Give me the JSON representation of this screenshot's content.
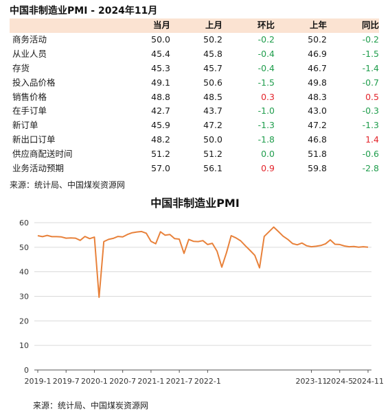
{
  "table_title": "中国非制造业PMI - 2024年11月",
  "table": {
    "headers": [
      "",
      "当月",
      "上月",
      "环比",
      "上年",
      "同比"
    ],
    "rows": [
      {
        "name": "商务活动",
        "cur": "50.0",
        "prev": "50.2",
        "mom": "-0.2",
        "lastyear": "50.2",
        "yoy": "-0.2"
      },
      {
        "name": "从业人员",
        "cur": "45.4",
        "prev": "45.8",
        "mom": "-0.4",
        "lastyear": "46.9",
        "yoy": "-1.5"
      },
      {
        "name": "存货",
        "cur": "45.3",
        "prev": "45.7",
        "mom": "-0.4",
        "lastyear": "46.7",
        "yoy": "-1.4"
      },
      {
        "name": "投入品价格",
        "cur": "49.1",
        "prev": "50.6",
        "mom": "-1.5",
        "lastyear": "49.8",
        "yoy": "-0.7"
      },
      {
        "name": "销售价格",
        "cur": "48.8",
        "prev": "48.5",
        "mom": "0.3",
        "lastyear": "48.3",
        "yoy": "0.5"
      },
      {
        "name": "在手订单",
        "cur": "42.7",
        "prev": "43.7",
        "mom": "-1.0",
        "lastyear": "43.0",
        "yoy": "-0.3"
      },
      {
        "name": "新订单",
        "cur": "45.9",
        "prev": "47.2",
        "mom": "-1.3",
        "lastyear": "47.2",
        "yoy": "-1.3"
      },
      {
        "name": "新出口订单",
        "cur": "48.2",
        "prev": "50.0",
        "mom": "-1.8",
        "lastyear": "46.8",
        "yoy": "1.4"
      },
      {
        "name": "供应商配送时间",
        "cur": "51.2",
        "prev": "51.2",
        "mom": "0.0",
        "lastyear": "51.8",
        "yoy": "-0.6"
      },
      {
        "name": "业务活动预期",
        "cur": "57.0",
        "prev": "56.1",
        "mom": "0.9",
        "lastyear": "59.8",
        "yoy": "-2.8"
      }
    ]
  },
  "source_top": "来源：统计局、中国煤炭资源网",
  "source_bottom": "来源：统计局、中国煤炭资源网",
  "colors": {
    "line": "#e8813a",
    "header_bg": "#fbe3d2",
    "positive": "#e3242b",
    "negative": "#1f9d4c",
    "grid": "#d9d9d9"
  },
  "chart_data": {
    "type": "line",
    "title": "中国非制造业PMI",
    "xlabel": "",
    "ylabel": "",
    "ylim": [
      0,
      60
    ],
    "yticks": [
      0,
      10,
      20,
      30,
      40,
      50,
      60
    ],
    "xtick_labels": [
      "2019-1",
      "2019-7",
      "2020-1",
      "2020-7",
      "2021-1",
      "2021-7",
      "2022-1",
      "2023-11",
      "2024-5",
      "2024-11"
    ],
    "grid": true,
    "legend": "none",
    "series": [
      {
        "name": "",
        "x": [
          "2019-1",
          "2019-2",
          "2019-3",
          "2019-4",
          "2019-5",
          "2019-6",
          "2019-7",
          "2019-8",
          "2019-9",
          "2019-10",
          "2019-11",
          "2019-12",
          "2020-1",
          "2020-2",
          "2020-3",
          "2020-4",
          "2020-5",
          "2020-6",
          "2020-7",
          "2020-8",
          "2020-9",
          "2020-10",
          "2020-11",
          "2020-12",
          "2021-1",
          "2021-2",
          "2021-3",
          "2021-4",
          "2021-5",
          "2021-6",
          "2021-7",
          "2021-8",
          "2021-9",
          "2021-10",
          "2021-11",
          "2021-12",
          "2022-1",
          "2022-2",
          "2022-3",
          "2022-4",
          "2022-5",
          "2022-6",
          "2022-7",
          "2022-8",
          "2022-9",
          "2022-10",
          "2022-11",
          "2022-12",
          "2023-1",
          "2023-2",
          "2023-3",
          "2023-4",
          "2023-5",
          "2023-6",
          "2023-7",
          "2023-8",
          "2023-9",
          "2023-10",
          "2023-11",
          "2023-12",
          "2024-1",
          "2024-2",
          "2024-3",
          "2024-4",
          "2024-5",
          "2024-6",
          "2024-7",
          "2024-8",
          "2024-9",
          "2024-10",
          "2024-11"
        ],
        "values": [
          54.7,
          54.3,
          54.8,
          54.3,
          54.3,
          54.2,
          53.7,
          53.8,
          53.7,
          52.8,
          54.4,
          53.5,
          54.1,
          29.6,
          52.3,
          53.2,
          53.6,
          54.4,
          54.2,
          55.2,
          55.9,
          56.2,
          56.4,
          55.7,
          52.4,
          51.4,
          56.3,
          54.9,
          55.2,
          53.5,
          53.3,
          47.5,
          53.2,
          52.4,
          52.3,
          52.7,
          51.1,
          51.6,
          48.4,
          41.9,
          47.8,
          54.7,
          53.8,
          52.6,
          50.6,
          48.7,
          46.7,
          41.6,
          54.4,
          56.3,
          58.2,
          56.4,
          54.5,
          53.2,
          51.5,
          51.0,
          51.7,
          50.6,
          50.2,
          50.4,
          50.7,
          51.4,
          53.0,
          51.2,
          51.1,
          50.5,
          50.2,
          50.3,
          50.0,
          50.2,
          50.0
        ]
      }
    ]
  }
}
